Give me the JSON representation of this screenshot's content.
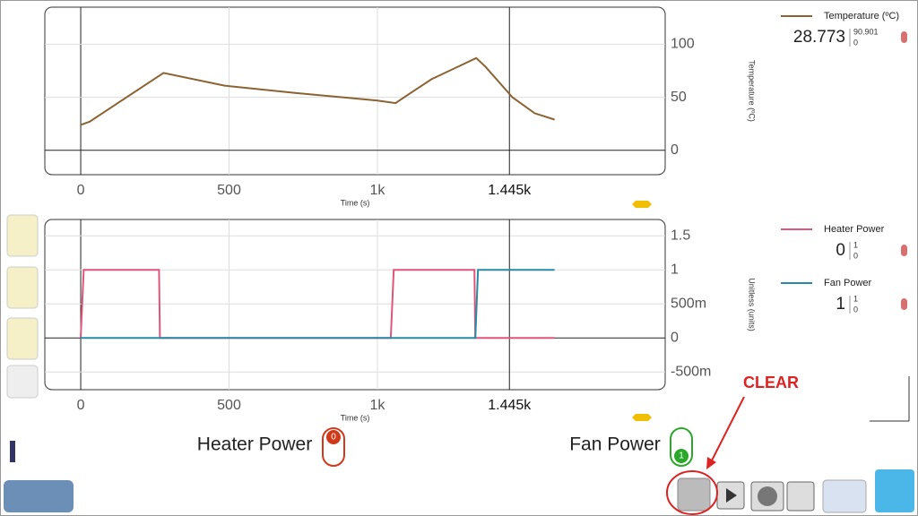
{
  "chart_data": [
    {
      "type": "line",
      "x_label": "Time (s)",
      "y_label": "Temperature (ºC)",
      "xlim": [
        -121,
        1970
      ],
      "xticks": [
        0,
        500,
        {
          "value": 1000,
          "label": "1k"
        }
      ],
      "ylim": [
        -23,
        135
      ],
      "yticks": [
        0,
        50,
        100
      ],
      "grid": true,
      "cursor": {
        "value": 1445,
        "label": "1.445k"
      },
      "series": [
        {
          "name": "Temperature (ºC)",
          "color": "#8b6332",
          "x": [
            0,
            30,
            279,
            485,
            727,
            1000,
            1061,
            1106,
            1182,
            1333,
            1364,
            1455,
            1530,
            1597
          ],
          "values": [
            24,
            27,
            73,
            61,
            54,
            47,
            44.5,
            53,
            67,
            87,
            79,
            50,
            35,
            29
          ]
        }
      ]
    },
    {
      "type": "line",
      "x_label": "Time (s)",
      "y_label": "Unitless (units)",
      "xlim": [
        -121,
        1970
      ],
      "xticks": [
        0,
        500,
        {
          "value": 1000,
          "label": "1k"
        }
      ],
      "ylim": [
        -0.76,
        1.74
      ],
      "yticks": [
        {
          "value": -0.5,
          "label": "-500m"
        },
        0,
        {
          "value": 0.5,
          "label": "500m"
        },
        1,
        1.5
      ],
      "grid": true,
      "cursor": {
        "value": 1445,
        "label": "1.445k"
      },
      "series": [
        {
          "name": "Heater Power",
          "color": "#e0567a",
          "x": [
            0,
            10,
            264,
            267,
            1045,
            1055,
            1327,
            1330,
            1597
          ],
          "values": [
            0,
            1,
            1,
            0,
            0,
            1,
            1,
            0,
            0
          ]
        },
        {
          "name": "Fan Power",
          "color": "#2a8aa6",
          "x": [
            0,
            1330,
            1339,
            1597
          ],
          "values": [
            0,
            0,
            1,
            1
          ]
        }
      ]
    }
  ],
  "readouts": [
    {
      "value": "28.773",
      "max": "90.901",
      "min": "0"
    },
    {
      "value": "0",
      "max": "1",
      "min": "0"
    },
    {
      "value": "1",
      "max": "1",
      "min": "0"
    }
  ],
  "ui": {
    "heater_label": "Heater Power",
    "heater_toggle": "0",
    "fan_label": "Fan Power",
    "fan_toggle": "1",
    "annotation": "CLEAR"
  }
}
